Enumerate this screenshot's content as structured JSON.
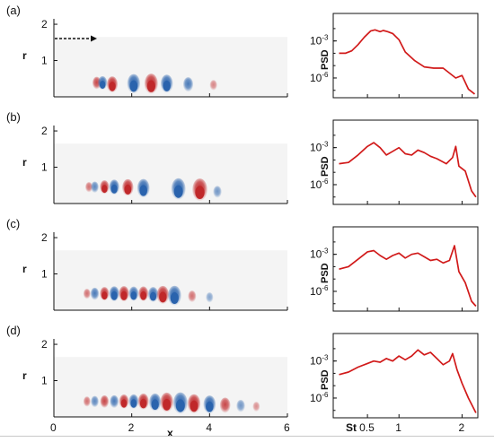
{
  "figure": {
    "panels": [
      {
        "label": "(a)",
        "contour": {
          "r_ticks": [
            "1",
            "2"
          ],
          "r_label": "r",
          "show_flow_arrow": true,
          "structures": [
            {
              "x": 1.1,
              "r": 0.38,
              "amp": 0.5
            },
            {
              "x": 1.25,
              "r": 0.38,
              "amp": -0.6
            },
            {
              "x": 1.5,
              "r": 0.34,
              "amp": 0.8
            },
            {
              "x": 2.05,
              "r": 0.36,
              "amp": -1.0
            },
            {
              "x": 2.5,
              "r": 0.36,
              "amp": 1.0
            },
            {
              "x": 2.9,
              "r": 0.36,
              "amp": -0.8
            },
            {
              "x": 3.45,
              "r": 0.34,
              "amp": -0.5
            },
            {
              "x": 4.1,
              "r": 0.32,
              "amp": 0.2
            }
          ]
        },
        "psd": {
          "y_label": "PSD",
          "y_ticks": [
            "10-3",
            "10-6"
          ],
          "curve": [
            [
              0.05,
              -4.0
            ],
            [
              0.15,
              -4.0
            ],
            [
              0.25,
              -3.8
            ],
            [
              0.35,
              -3.3
            ],
            [
              0.45,
              -2.7
            ],
            [
              0.55,
              -2.2
            ],
            [
              0.62,
              -2.1
            ],
            [
              0.7,
              -2.25
            ],
            [
              0.75,
              -2.15
            ],
            [
              0.82,
              -2.25
            ],
            [
              0.9,
              -2.4
            ],
            [
              1.0,
              -2.9
            ],
            [
              1.1,
              -3.9
            ],
            [
              1.25,
              -4.6
            ],
            [
              1.4,
              -5.1
            ],
            [
              1.55,
              -5.2
            ],
            [
              1.7,
              -5.2
            ],
            [
              1.8,
              -5.6
            ],
            [
              1.9,
              -6.0
            ],
            [
              2.0,
              -5.8
            ],
            [
              2.1,
              -6.9
            ],
            [
              2.2,
              -7.3
            ]
          ]
        }
      },
      {
        "label": "(b)",
        "contour": {
          "r_ticks": [
            "1",
            "2"
          ],
          "r_label": "r",
          "show_flow_arrow": false,
          "structures": [
            {
              "x": 0.9,
              "r": 0.45,
              "amp": 0.3
            },
            {
              "x": 1.05,
              "r": 0.45,
              "amp": -0.4
            },
            {
              "x": 1.3,
              "r": 0.45,
              "amp": 0.6
            },
            {
              "x": 1.55,
              "r": 0.45,
              "amp": -0.7
            },
            {
              "x": 1.9,
              "r": 0.44,
              "amp": 0.8
            },
            {
              "x": 2.3,
              "r": 0.42,
              "amp": -0.9
            },
            {
              "x": 3.2,
              "r": 0.4,
              "amp": -1.0
            },
            {
              "x": 3.75,
              "r": 0.38,
              "amp": 1.0
            },
            {
              "x": 4.2,
              "r": 0.32,
              "amp": -0.3
            }
          ]
        },
        "psd": {
          "y_label": "PSD",
          "y_ticks": [
            "10-3",
            "10-6"
          ],
          "curve": [
            [
              0.05,
              -4.3
            ],
            [
              0.2,
              -4.2
            ],
            [
              0.35,
              -3.6
            ],
            [
              0.5,
              -2.9
            ],
            [
              0.6,
              -2.6
            ],
            [
              0.7,
              -3.0
            ],
            [
              0.8,
              -3.6
            ],
            [
              0.9,
              -3.3
            ],
            [
              1.0,
              -3.0
            ],
            [
              1.1,
              -3.5
            ],
            [
              1.2,
              -3.6
            ],
            [
              1.3,
              -3.2
            ],
            [
              1.4,
              -3.4
            ],
            [
              1.5,
              -3.7
            ],
            [
              1.6,
              -3.9
            ],
            [
              1.75,
              -4.3
            ],
            [
              1.85,
              -3.8
            ],
            [
              1.9,
              -2.9
            ],
            [
              1.95,
              -4.5
            ],
            [
              2.05,
              -4.9
            ],
            [
              2.15,
              -6.5
            ],
            [
              2.22,
              -7.0
            ]
          ]
        }
      },
      {
        "label": "(c)",
        "contour": {
          "r_ticks": [
            "1",
            "2"
          ],
          "r_label": "r",
          "show_flow_arrow": false,
          "structures": [
            {
              "x": 0.85,
              "r": 0.45,
              "amp": 0.3
            },
            {
              "x": 1.05,
              "r": 0.45,
              "amp": -0.5
            },
            {
              "x": 1.3,
              "r": 0.45,
              "amp": 0.6
            },
            {
              "x": 1.55,
              "r": 0.45,
              "amp": -0.7
            },
            {
              "x": 1.8,
              "r": 0.45,
              "amp": 0.7
            },
            {
              "x": 2.05,
              "r": 0.45,
              "amp": -0.6
            },
            {
              "x": 2.3,
              "r": 0.45,
              "amp": 0.6
            },
            {
              "x": 2.55,
              "r": 0.43,
              "amp": -0.6
            },
            {
              "x": 2.8,
              "r": 0.42,
              "amp": 0.8
            },
            {
              "x": 3.1,
              "r": 0.4,
              "amp": -0.9
            },
            {
              "x": 3.55,
              "r": 0.38,
              "amp": 0.3
            },
            {
              "x": 4.0,
              "r": 0.35,
              "amp": -0.2
            }
          ]
        },
        "psd": {
          "y_label": "PSD",
          "y_ticks": [
            "10-3",
            "10-6"
          ],
          "curve": [
            [
              0.05,
              -4.2
            ],
            [
              0.2,
              -4.0
            ],
            [
              0.35,
              -3.4
            ],
            [
              0.5,
              -2.8
            ],
            [
              0.6,
              -2.7
            ],
            [
              0.7,
              -3.1
            ],
            [
              0.8,
              -3.4
            ],
            [
              0.9,
              -3.1
            ],
            [
              1.0,
              -2.9
            ],
            [
              1.1,
              -3.3
            ],
            [
              1.2,
              -3.0
            ],
            [
              1.3,
              -2.9
            ],
            [
              1.4,
              -3.2
            ],
            [
              1.5,
              -3.5
            ],
            [
              1.6,
              -3.4
            ],
            [
              1.7,
              -3.7
            ],
            [
              1.8,
              -3.5
            ],
            [
              1.88,
              -2.3
            ],
            [
              1.95,
              -4.4
            ],
            [
              2.05,
              -5.3
            ],
            [
              2.15,
              -6.8
            ],
            [
              2.22,
              -7.2
            ]
          ]
        }
      },
      {
        "label": "(d)",
        "contour": {
          "r_ticks": [
            "1",
            "2"
          ],
          "r_label": "r",
          "show_flow_arrow": false,
          "x_ticks": [
            "0",
            "2",
            "4",
            "6"
          ],
          "x_label": "x",
          "structures": [
            {
              "x": 0.85,
              "r": 0.42,
              "amp": 0.3
            },
            {
              "x": 1.05,
              "r": 0.42,
              "amp": -0.4
            },
            {
              "x": 1.3,
              "r": 0.42,
              "amp": 0.5
            },
            {
              "x": 1.55,
              "r": 0.42,
              "amp": -0.5
            },
            {
              "x": 1.8,
              "r": 0.42,
              "amp": 0.6
            },
            {
              "x": 2.05,
              "r": 0.42,
              "amp": -0.6
            },
            {
              "x": 2.3,
              "r": 0.42,
              "amp": 0.7
            },
            {
              "x": 2.6,
              "r": 0.4,
              "amp": -0.8
            },
            {
              "x": 2.9,
              "r": 0.4,
              "amp": 0.9
            },
            {
              "x": 3.25,
              "r": 0.38,
              "amp": -1.0
            },
            {
              "x": 3.6,
              "r": 0.36,
              "amp": 0.8
            },
            {
              "x": 4.0,
              "r": 0.34,
              "amp": -0.7
            },
            {
              "x": 4.4,
              "r": 0.32,
              "amp": 0.5
            },
            {
              "x": 4.8,
              "r": 0.3,
              "amp": -0.3
            },
            {
              "x": 5.2,
              "r": 0.28,
              "amp": 0.15
            }
          ]
        },
        "psd": {
          "y_label": "PSD",
          "y_ticks": [
            "10-3",
            "10-6"
          ],
          "x_ticks": [
            "0.5",
            "1",
            "2"
          ],
          "x_label": "St",
          "curve": [
            [
              0.05,
              -4.1
            ],
            [
              0.2,
              -3.9
            ],
            [
              0.35,
              -3.5
            ],
            [
              0.5,
              -3.2
            ],
            [
              0.6,
              -3.0
            ],
            [
              0.7,
              -3.1
            ],
            [
              0.8,
              -2.8
            ],
            [
              0.9,
              -3.0
            ],
            [
              1.0,
              -2.6
            ],
            [
              1.1,
              -2.9
            ],
            [
              1.2,
              -2.6
            ],
            [
              1.3,
              -2.1
            ],
            [
              1.4,
              -2.5
            ],
            [
              1.5,
              -2.3
            ],
            [
              1.6,
              -2.8
            ],
            [
              1.7,
              -3.3
            ],
            [
              1.8,
              -3.0
            ],
            [
              1.85,
              -2.4
            ],
            [
              1.92,
              -3.7
            ],
            [
              2.0,
              -4.8
            ],
            [
              2.1,
              -6.0
            ],
            [
              2.22,
              -7.2
            ]
          ]
        }
      }
    ],
    "colors": {
      "positive": "#c0282a",
      "negative": "#2a63ad",
      "domain_fill": "#f4f4f4",
      "psd_line": "#d11a1a",
      "flow_arrow": "#111111"
    },
    "tick_label_ten": "10"
  }
}
